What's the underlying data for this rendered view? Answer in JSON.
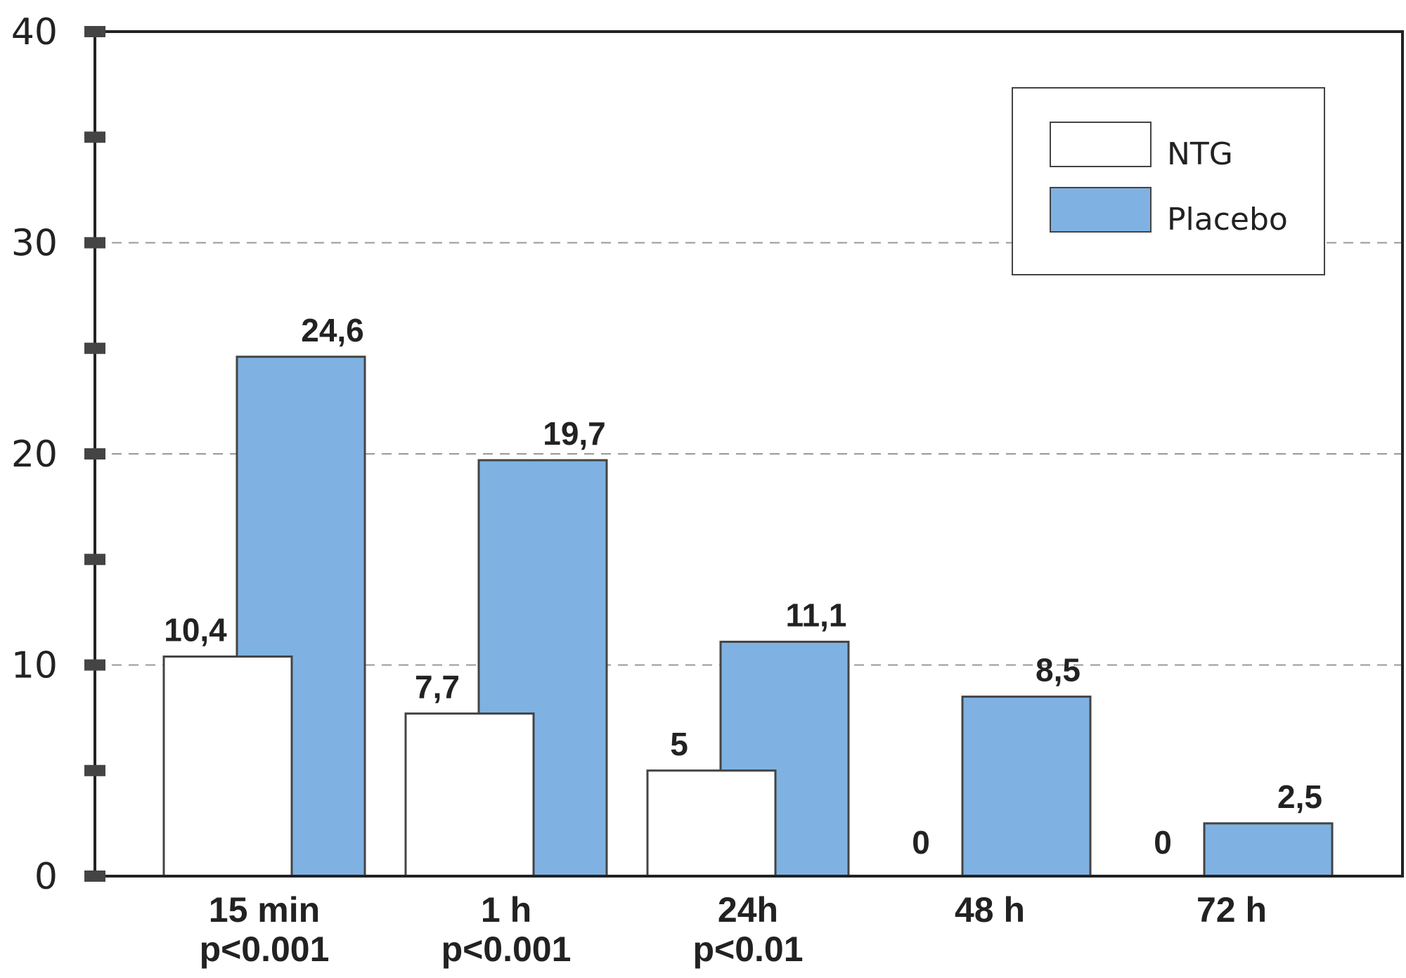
{
  "chart_data": {
    "type": "bar",
    "categories": [
      "15 min",
      "1 h",
      "24h",
      "48 h",
      "72 h"
    ],
    "category_sublabels": [
      "p<0.001",
      "p<0.001",
      "p<0.01",
      "",
      ""
    ],
    "series": [
      {
        "name": "NTG",
        "values": [
          10.4,
          7.7,
          5,
          0,
          0
        ],
        "value_labels": [
          "10,4",
          "7,7",
          "5",
          "0",
          "0"
        ],
        "color": "#ffffff"
      },
      {
        "name": "Placebo",
        "values": [
          24.6,
          19.7,
          11.1,
          8.5,
          2.5
        ],
        "value_labels": [
          "24,6",
          "19,7",
          "11,1",
          "8,5",
          "2,5"
        ],
        "color": "#7fb2e2"
      }
    ],
    "ylim": [
      0,
      40
    ],
    "yticks": [
      0,
      10,
      20,
      30,
      40
    ],
    "ytick_labels": [
      "0",
      "10",
      "20",
      "30",
      "40"
    ],
    "grid": "dashed horizontal at 10, 20, 30",
    "legend": "top-right",
    "title": "",
    "xlabel": "",
    "ylabel": ""
  }
}
